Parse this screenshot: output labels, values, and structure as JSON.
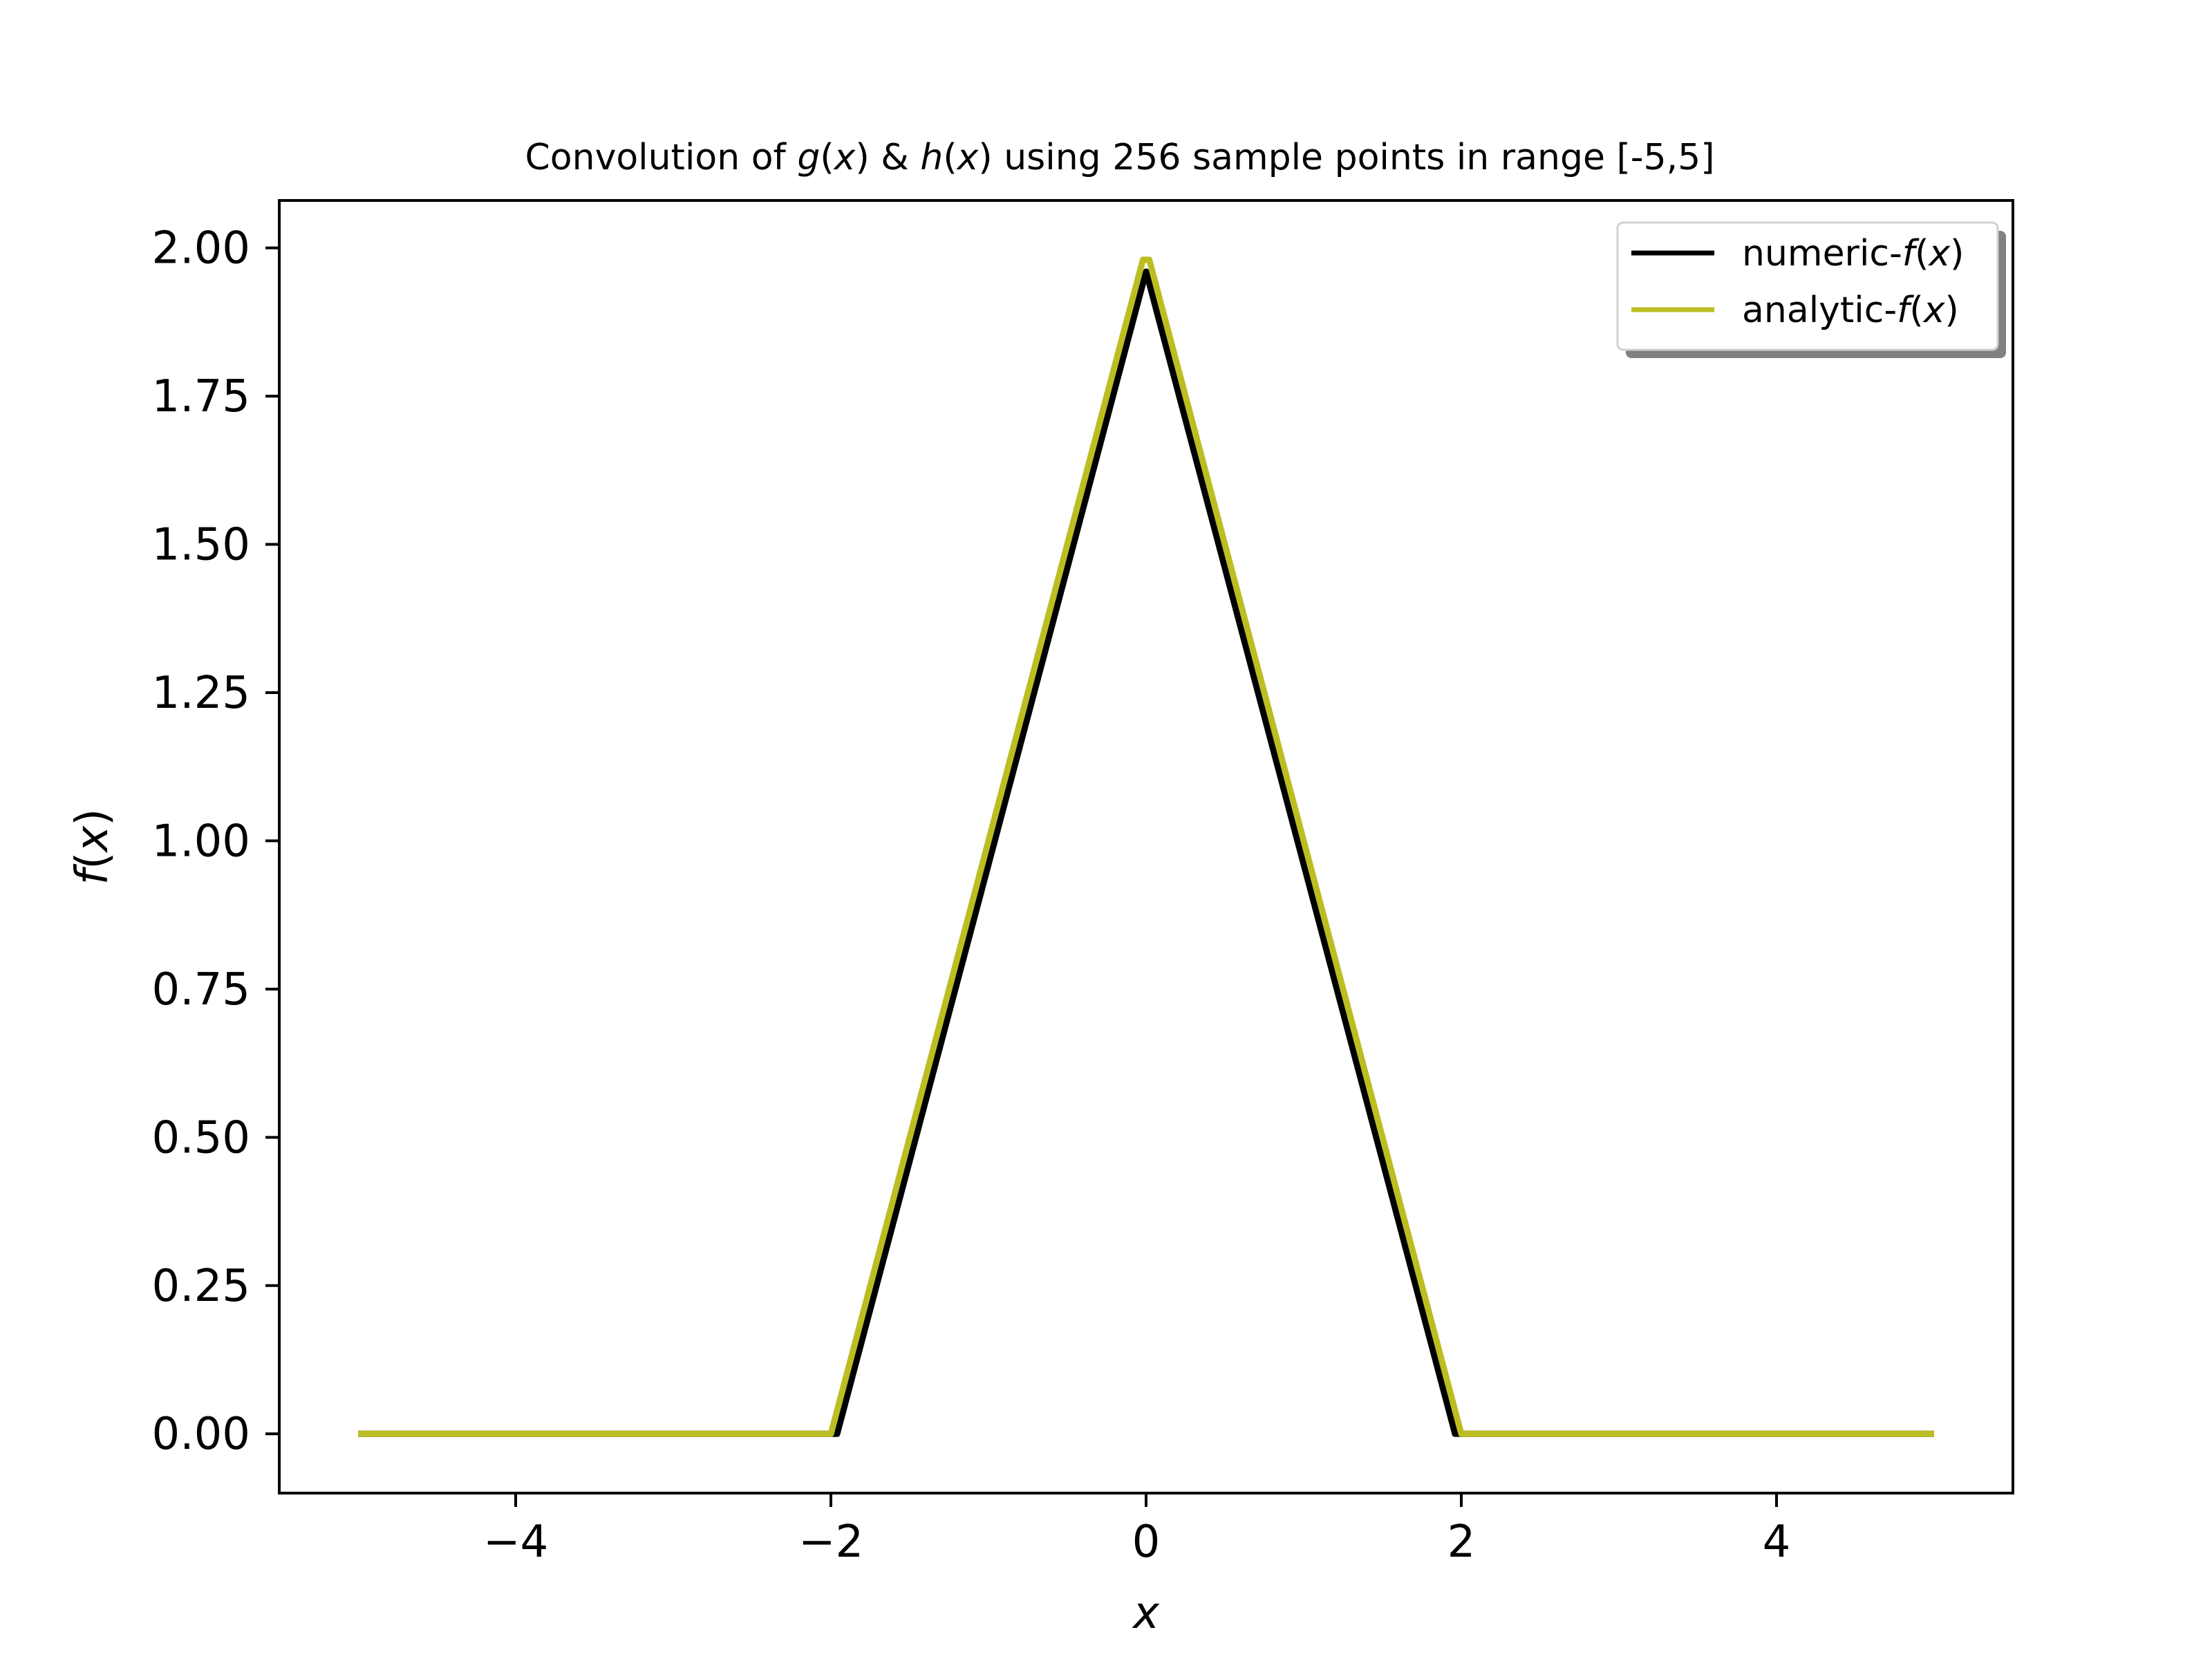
{
  "chart_data": {
    "type": "line",
    "title": {
      "prefix": "Convolution of ",
      "g": "g",
      "lp1": "(",
      "x1": "x",
      "rp1": ")",
      "amp": " & ",
      "h": "h",
      "lp2": "(",
      "x2": "x",
      "rp2": ")",
      "suffix": " using 256 sample points in range [-5,5]"
    },
    "xlabel": "x",
    "ylabel": {
      "f": "f",
      "lp": "(",
      "x": "x",
      "rp": ")"
    },
    "xlim": [
      -5.5,
      5.5
    ],
    "ylim": [
      -0.1,
      2.08
    ],
    "xticks": [
      -4,
      -2,
      0,
      2,
      4
    ],
    "xtick_labels": [
      "−4",
      "−2",
      "0",
      "2",
      "4"
    ],
    "yticks": [
      0.0,
      0.25,
      0.5,
      0.75,
      1.0,
      1.25,
      1.5,
      1.75,
      2.0
    ],
    "ytick_labels": [
      "0.00",
      "0.25",
      "0.50",
      "0.75",
      "1.00",
      "1.25",
      "1.50",
      "1.75",
      "2.00"
    ],
    "grid": false,
    "legend_position": "top-right",
    "series": [
      {
        "name": {
          "prefix": "numeric-",
          "f": "f",
          "lp": "(",
          "x": "x",
          "rp": ")"
        },
        "color": "#000000",
        "x": [
          -5.0,
          -1.96,
          0.0,
          1.96,
          5.0
        ],
        "y": [
          0.0,
          0.0,
          1.96,
          0.0,
          0.0
        ]
      },
      {
        "name": {
          "prefix": "analytic-",
          "f": "f",
          "lp": "(",
          "x": "x",
          "rp": ")"
        },
        "color": "#bcbd22",
        "x": [
          -5.0,
          -2.0,
          -1.98,
          -0.02,
          0.02,
          1.98,
          2.0,
          5.0
        ],
        "y": [
          0.0,
          0.0,
          0.02,
          1.98,
          1.98,
          0.02,
          0.0,
          0.0
        ]
      }
    ]
  }
}
